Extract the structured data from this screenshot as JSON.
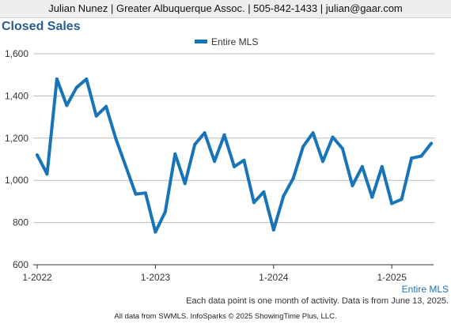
{
  "header": {
    "contact": "Julian Nunez | Greater Albuquerque Assoc. | 505-842-1433 | julian@gaar.com"
  },
  "chart_title": "Closed Sales",
  "footnote": "Each data point is one month of activity. Data is from June 13, 2025.",
  "credits": "All data from SWMLS. InfoSparks © 2025 ShowingTime Plus, LLC.",
  "colors": {
    "series": "#1874b8",
    "title": "#2a5d8f",
    "grid": "#b8b8b8"
  },
  "chart_data": {
    "type": "line",
    "title": "Closed Sales",
    "xlabel": "",
    "ylabel": "",
    "ylim": [
      600,
      1600
    ],
    "y_ticks": [
      "600",
      "800",
      "1,000",
      "1,200",
      "1,400",
      "1,600"
    ],
    "x_ticks": [
      "1-2022",
      "1-2023",
      "1-2024",
      "1-2025"
    ],
    "grid": true,
    "legend_position": "top",
    "series_end_label": "Entire MLS",
    "series": [
      {
        "name": "Entire MLS",
        "x": [
          "2022-01",
          "2022-02",
          "2022-03",
          "2022-04",
          "2022-05",
          "2022-06",
          "2022-07",
          "2022-08",
          "2022-09",
          "2022-10",
          "2022-11",
          "2022-12",
          "2023-01",
          "2023-02",
          "2023-03",
          "2023-04",
          "2023-05",
          "2023-06",
          "2023-07",
          "2023-08",
          "2023-09",
          "2023-10",
          "2023-11",
          "2023-12",
          "2024-01",
          "2024-02",
          "2024-03",
          "2024-04",
          "2024-05",
          "2024-06",
          "2024-07",
          "2024-08",
          "2024-09",
          "2024-10",
          "2024-11",
          "2024-12",
          "2025-01",
          "2025-02",
          "2025-03",
          "2025-04",
          "2025-05"
        ],
        "values": [
          1120,
          1030,
          1480,
          1355,
          1440,
          1480,
          1305,
          1350,
          1195,
          1065,
          935,
          940,
          755,
          850,
          1125,
          985,
          1170,
          1225,
          1090,
          1215,
          1065,
          1095,
          895,
          945,
          765,
          925,
          1010,
          1160,
          1225,
          1090,
          1205,
          1150,
          975,
          1065,
          920,
          1065,
          890,
          910,
          1105,
          1115,
          1175
        ]
      }
    ]
  }
}
